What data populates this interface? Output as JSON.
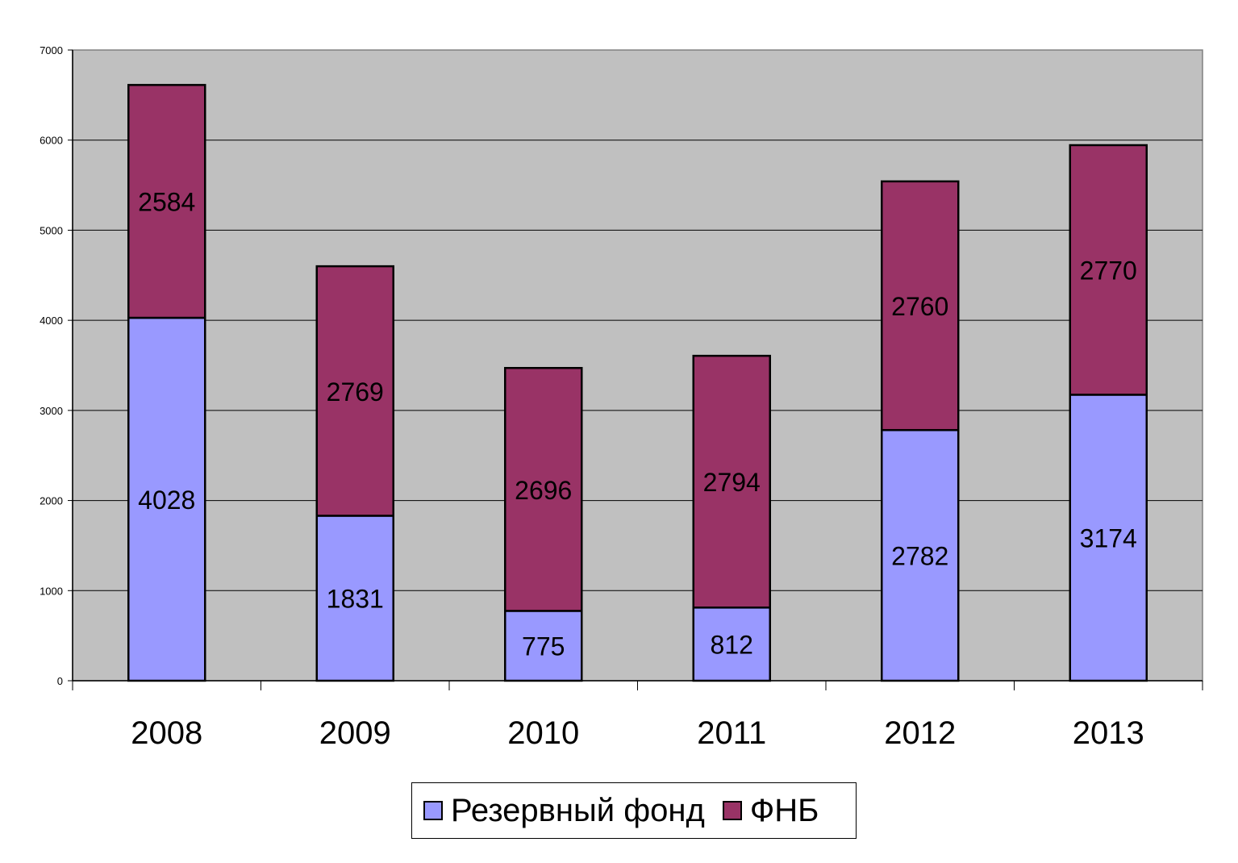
{
  "chart_data": {
    "type": "bar",
    "stacked": true,
    "categories": [
      "2008",
      "2009",
      "2010",
      "2011",
      "2012",
      "2013"
    ],
    "series": [
      {
        "name": "Резервный фонд",
        "color": "#9999ff",
        "values": [
          4028,
          1831,
          775,
          812,
          2782,
          3174
        ]
      },
      {
        "name": "ФНБ",
        "color": "#993366",
        "values": [
          2584,
          2769,
          2696,
          2794,
          2760,
          2770
        ]
      }
    ],
    "ylim": [
      0,
      7000
    ],
    "yticks": [
      0,
      1000,
      2000,
      3000,
      4000,
      5000,
      6000,
      7000
    ],
    "grid": true,
    "plot_background": "#c0c0c0",
    "legend_position": "bottom",
    "title": "",
    "xlabel": "",
    "ylabel": ""
  }
}
